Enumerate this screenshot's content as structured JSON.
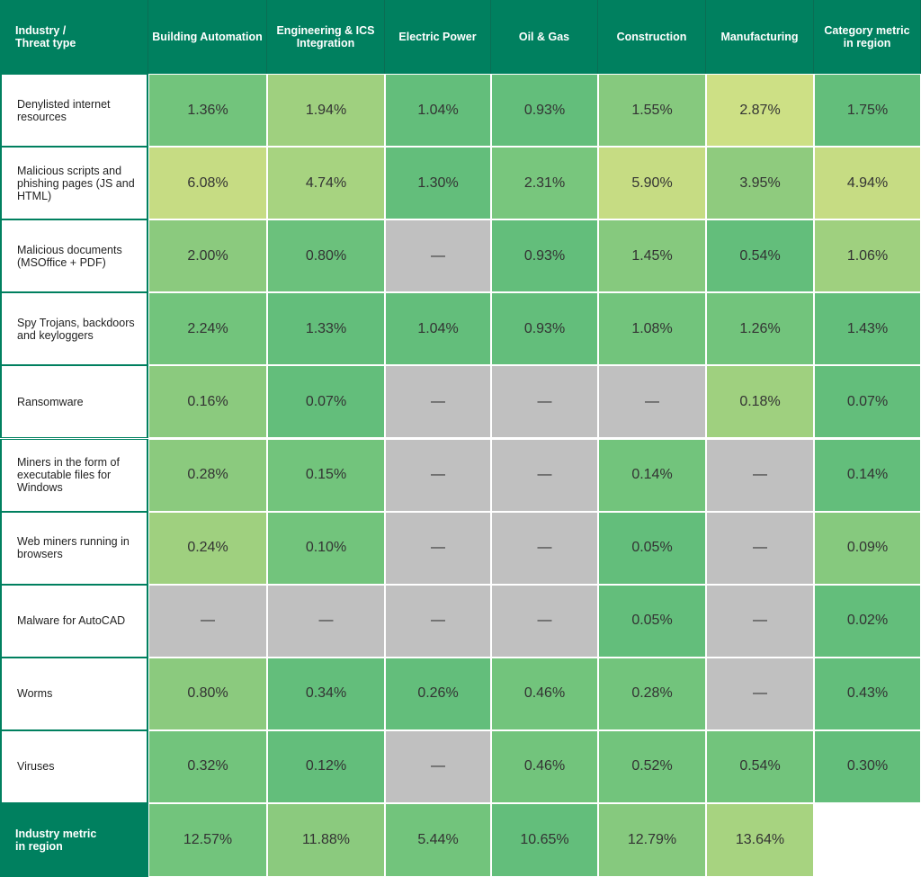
{
  "table": {
    "header": [
      "Industry /\nThreat type",
      "Building Automation",
      "Engineering & ICS\nIntegration",
      "Electric Power",
      "Oil & Gas",
      "Construction",
      "Manufacturing",
      "Category metric\nin region"
    ],
    "rows": [
      {
        "label": "Denylisted internet\nresources",
        "cells": [
          "1.36%",
          "1.94%",
          "1.04%",
          "0.93%",
          "1.55%",
          "2.87%",
          "1.75%"
        ],
        "colors": [
          "#72c47c",
          "#9fd07f",
          "#63be7b",
          "#63be7b",
          "#86c97e",
          "#cde085",
          "#63be7b"
        ]
      },
      {
        "label": "Malicious scripts and\nphishing pages (JS and\nHTML)",
        "cells": [
          "6.08%",
          "4.74%",
          "1.30%",
          "2.31%",
          "5.90%",
          "3.95%",
          "4.94%"
        ],
        "colors": [
          "#c6dc83",
          "#a7d380",
          "#63be7b",
          "#78c67d",
          "#c6dc83",
          "#8fcb7e",
          "#c6dc83"
        ]
      },
      {
        "label": "Malicious documents\n(MSOffice + PDF)",
        "cells": [
          "2.00%",
          "0.80%",
          "—",
          "0.93%",
          "1.45%",
          "0.54%",
          "1.06%"
        ],
        "colors": [
          "#8bca7e",
          "#6bc17c",
          "#c0c0c0",
          "#63be7b",
          "#86c97e",
          "#63be7b",
          "#9fd07f"
        ]
      },
      {
        "label": "Spy Trojans, backdoors\nand keyloggers",
        "cells": [
          "2.24%",
          "1.33%",
          "1.04%",
          "0.93%",
          "1.08%",
          "1.26%",
          "1.43%"
        ],
        "colors": [
          "#72c47c",
          "#63be7b",
          "#63be7b",
          "#63be7b",
          "#72c47c",
          "#72c47c",
          "#63be7b"
        ]
      },
      {
        "label": "Ransomware",
        "cells": [
          "0.16%",
          "0.07%",
          "—",
          "—",
          "—",
          "0.18%",
          "0.07%"
        ],
        "colors": [
          "#8bca7e",
          "#63be7b",
          "#c0c0c0",
          "#c0c0c0",
          "#c0c0c0",
          "#9fd07f",
          "#63be7b"
        ]
      },
      {
        "label": "Miners in the form of\nexecutable files for\nWindows",
        "cells": [
          "0.28%",
          "0.15%",
          "—",
          "—",
          "0.14%",
          "—",
          "0.14%"
        ],
        "colors": [
          "#8bca7e",
          "#72c47c",
          "#c0c0c0",
          "#c0c0c0",
          "#72c47c",
          "#c0c0c0",
          "#63be7b"
        ]
      },
      {
        "label": "Web miners running in\nbrowsers",
        "cells": [
          "0.24%",
          "0.10%",
          "—",
          "—",
          "0.05%",
          "—",
          "0.09%"
        ],
        "colors": [
          "#9fd07f",
          "#72c47c",
          "#c0c0c0",
          "#c0c0c0",
          "#63be7b",
          "#c0c0c0",
          "#86c97e"
        ]
      },
      {
        "label": "Malware for AutoCAD",
        "cells": [
          "—",
          "—",
          "—",
          "—",
          "0.05%",
          "—",
          "0.02%"
        ],
        "colors": [
          "#c0c0c0",
          "#c0c0c0",
          "#c0c0c0",
          "#c0c0c0",
          "#63be7b",
          "#c0c0c0",
          "#63be7b"
        ]
      },
      {
        "label": "Worms",
        "cells": [
          "0.80%",
          "0.34%",
          "0.26%",
          "0.46%",
          "0.28%",
          "—",
          "0.43%"
        ],
        "colors": [
          "#8bca7e",
          "#63be7b",
          "#63be7b",
          "#72c47c",
          "#72c47c",
          "#c0c0c0",
          "#63be7b"
        ]
      },
      {
        "label": "Viruses",
        "cells": [
          "0.32%",
          "0.12%",
          "—",
          "0.46%",
          "0.52%",
          "0.54%",
          "0.30%"
        ],
        "colors": [
          "#72c47c",
          "#63be7b",
          "#c0c0c0",
          "#72c47c",
          "#72c47c",
          "#72c47c",
          "#63be7b"
        ]
      }
    ],
    "footer": {
      "label": "Industry metric\nin region",
      "cells": [
        "12.57%",
        "11.88%",
        "5.44%",
        "10.65%",
        "12.79%",
        "13.64%"
      ],
      "colors": [
        "#72c47c",
        "#8bca7e",
        "#72c47c",
        "#63be7b",
        "#86c97e",
        "#a7d380"
      ]
    }
  }
}
